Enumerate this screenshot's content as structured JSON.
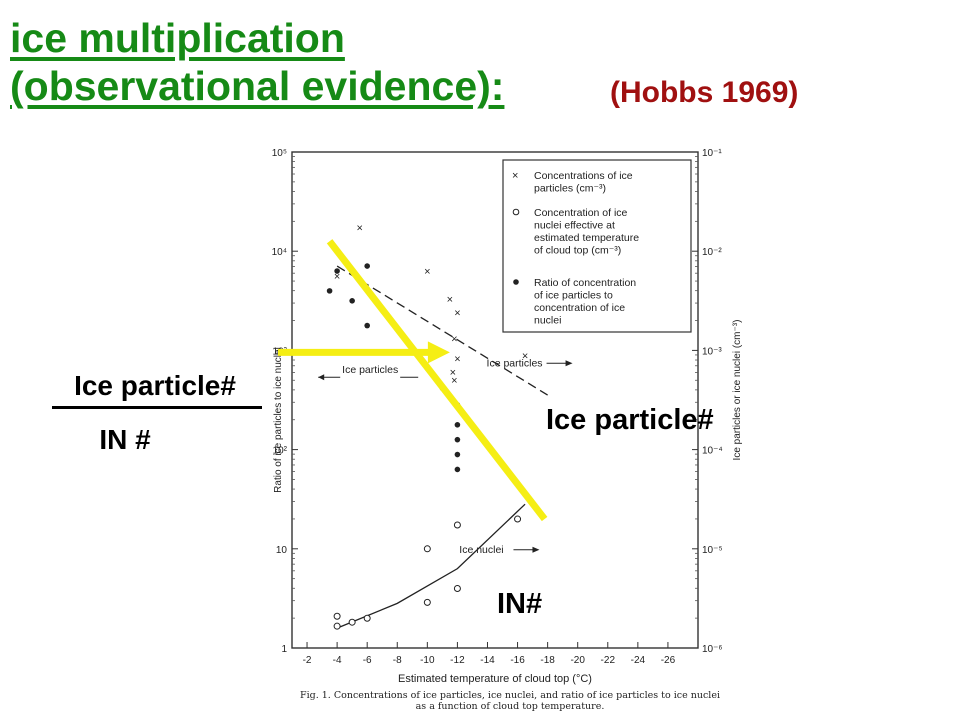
{
  "heading": {
    "line1": "ice multiplication",
    "line2": "(observational evidence):",
    "citation": "(Hobbs 1969)"
  },
  "annotations": {
    "ratio_numerator": "Ice particle#",
    "ratio_denominator": "IN #",
    "ice_label": "Ice particle#",
    "in_label": "IN#"
  },
  "colors": {
    "title": "#168a16",
    "citation": "#a01010",
    "highlight": "#f5ee14"
  },
  "chart_data": {
    "type": "scatter",
    "xlabel": "Estimated temperature of cloud top (°C)",
    "ylabel_left": "Ratio of ice particles to ice nuclei",
    "ylabel_right": "Ice particles or ice nuclei (cm⁻³)",
    "x_ticks": [
      "-2",
      "-4",
      "-6",
      "-8",
      "-10",
      "-12",
      "-14",
      "-16",
      "-18",
      "-20",
      "-22",
      "-24",
      "-26"
    ],
    "xlim": [
      -1,
      -28
    ],
    "y_left_ticks": [
      "1",
      "10",
      "10²",
      "10³",
      "10⁴",
      "10⁵"
    ],
    "y_right_ticks": [
      "10⁻⁶",
      "10⁻⁵",
      "10⁻⁴",
      "10⁻³",
      "10⁻²",
      "10⁻¹"
    ],
    "ylim_log10": [
      0,
      5
    ],
    "legend": [
      "Concentrations of ice particles (cm⁻³)",
      "Concentration of ice nuclei effective at estimated temperature of cloud top (cm⁻³)",
      "Ratio of concentration of ice particles to concentration of ice nuclei"
    ],
    "inline_labels": [
      "Ice particles",
      "Ice particles",
      "Ice nuclei"
    ],
    "caption_line1": "Fig. 1. Concentrations of ice particles, ice nuclei, and ratio of ice particles to ice nuclei",
    "caption_line2": "as a function of cloud top temperature.",
    "series": [
      {
        "name": "Concentrations of ice particles (cm⁻³)",
        "marker": "x",
        "points": [
          [
            -4,
            3.75
          ],
          [
            -5.5,
            4.24
          ],
          [
            -10,
            3.8
          ],
          [
            -11.5,
            3.52
          ],
          [
            -12,
            3.38
          ],
          [
            -11.8,
            3.12
          ],
          [
            -12,
            2.92
          ],
          [
            -11.7,
            2.78
          ],
          [
            -11.8,
            2.7
          ],
          [
            -16.5,
            2.95
          ]
        ]
      },
      {
        "name": "Concentration of ice nuclei effective at estimated temperature of cloud top (cm⁻³)",
        "marker": "o",
        "points": [
          [
            -4,
            0.32
          ],
          [
            -4,
            0.22
          ],
          [
            -5,
            0.26
          ],
          [
            -6,
            0.3
          ],
          [
            -10,
            1.0
          ],
          [
            -10,
            0.46
          ],
          [
            -12,
            1.24
          ],
          [
            -12,
            0.6
          ],
          [
            -16,
            1.3
          ]
        ]
      },
      {
        "name": "Ratio of concentration of ice particles to concentration of ice nuclei",
        "marker": "dot",
        "points": [
          [
            -3.5,
            3.6
          ],
          [
            -4,
            3.8
          ],
          [
            -5,
            3.5
          ],
          [
            -6,
            3.25
          ],
          [
            -6,
            3.85
          ],
          [
            -10,
            2.82
          ],
          [
            -11,
            2.62
          ],
          [
            -12,
            2.45
          ],
          [
            -12,
            2.25
          ],
          [
            -12,
            2.1
          ],
          [
            -12,
            1.95
          ],
          [
            -12,
            1.8
          ],
          [
            -16,
            1.65
          ]
        ]
      }
    ],
    "trend_lines": [
      {
        "label": "Ice particles",
        "style": "dashed",
        "points": [
          [
            -4,
            3.85
          ],
          [
            -18,
            2.55
          ]
        ]
      },
      {
        "label": "Ice particles",
        "style": "dashed",
        "points": [
          [
            -4,
            4.0
          ],
          [
            -17,
            1.45
          ]
        ]
      },
      {
        "label": "Ice nuclei",
        "style": "solid",
        "points": [
          [
            -4,
            0.2
          ],
          [
            -8,
            0.45
          ],
          [
            -12,
            0.8
          ],
          [
            -16.5,
            1.45
          ]
        ]
      }
    ],
    "highlight_lines": [
      {
        "style": "diagonal",
        "points": [
          [
            -3.5,
            4.1
          ],
          [
            -17.8,
            1.3
          ]
        ]
      },
      {
        "style": "arrow",
        "target": [
          -11.5,
          2.98
        ]
      }
    ]
  }
}
